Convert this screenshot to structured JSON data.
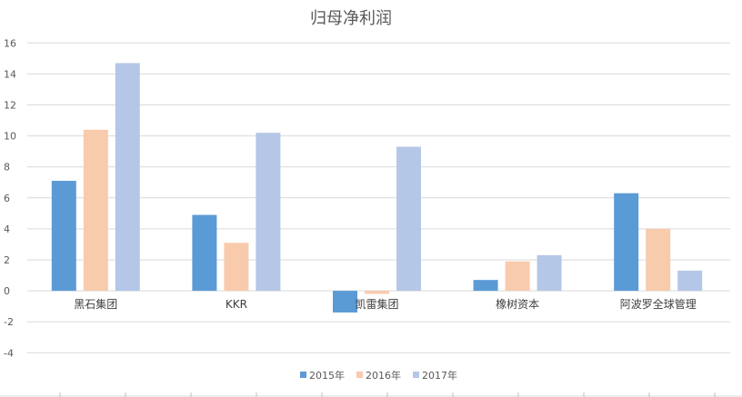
{
  "chart_data": {
    "type": "bar",
    "title": "归母净利润",
    "categories": [
      "黑石集团",
      "KKR",
      "凯雷集团",
      "橡树资本",
      "阿波罗全球管理"
    ],
    "series": [
      {
        "name": "2015年",
        "color": "#5b9bd5",
        "values": [
          7.1,
          4.9,
          -1.4,
          0.7,
          6.3
        ]
      },
      {
        "name": "2016年",
        "color": "#f8cbad",
        "values": [
          10.4,
          3.1,
          -0.2,
          1.9,
          4.0
        ]
      },
      {
        "name": "2017年",
        "color": "#b4c7e7",
        "values": [
          14.7,
          10.2,
          9.3,
          2.3,
          1.3
        ]
      }
    ],
    "ylim": [
      -4,
      16
    ],
    "yticks": [
      -4,
      -2,
      0,
      2,
      4,
      6,
      8,
      10,
      12,
      14,
      16
    ],
    "grid": true,
    "legend": "bottom",
    "xlabel": "",
    "ylabel": ""
  }
}
